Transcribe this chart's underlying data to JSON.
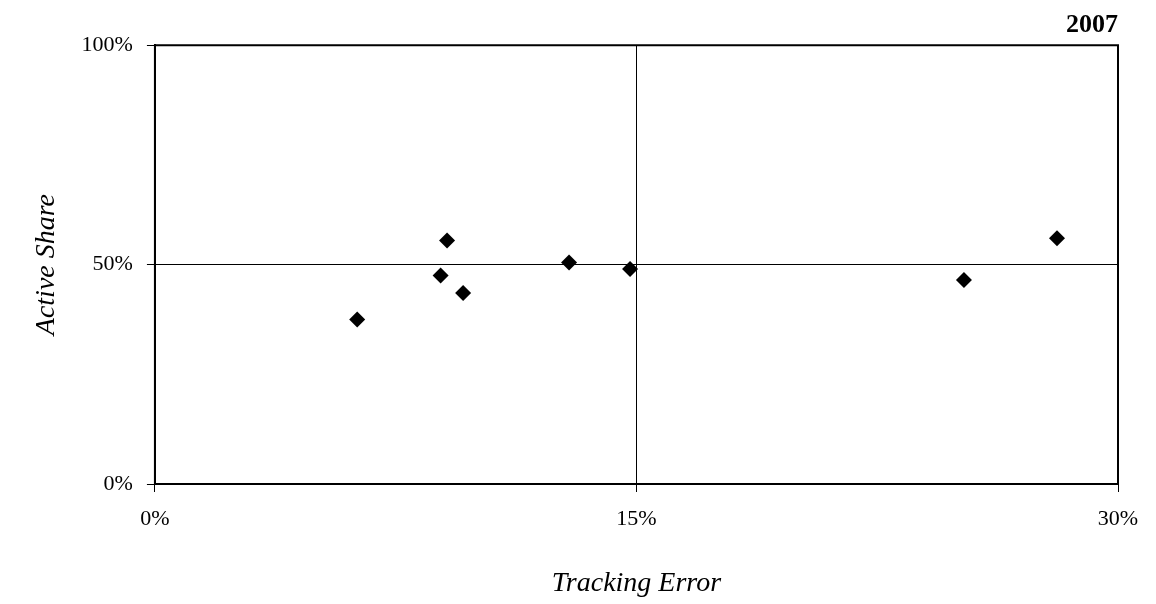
{
  "chart_data": {
    "type": "scatter",
    "title": "2007",
    "xlabel": "Tracking Error",
    "ylabel": "Active Share",
    "x": [
      6.3,
      8.9,
      9.1,
      9.6,
      12.9,
      14.8,
      25.2,
      28.1
    ],
    "series": [
      {
        "color": "#000000",
        "values": [
          37.5,
          47.5,
          55.5,
          43.5,
          50.5,
          49,
          46.5,
          56
        ]
      }
    ],
    "xlim": [
      0,
      30
    ],
    "xticks": [
      {
        "value": 0,
        "label": "0%"
      },
      {
        "value": 15,
        "label": "15%"
      },
      {
        "value": 30,
        "label": "30%"
      }
    ],
    "ylim": [
      0,
      100
    ],
    "yticks": [
      {
        "value": 0,
        "label": "0%"
      },
      {
        "value": 50,
        "label": "50%"
      },
      {
        "value": 100,
        "label": "100%"
      }
    ],
    "grid": true,
    "legend": false,
    "marker": "diamond"
  }
}
